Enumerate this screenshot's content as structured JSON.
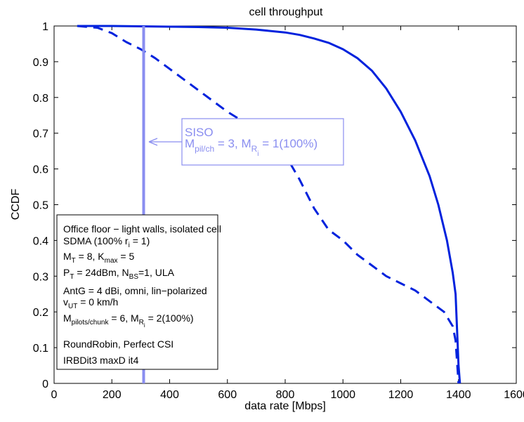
{
  "chart_data": {
    "type": "line",
    "title": "cell throughput",
    "xlabel": "data rate [Mbps]",
    "ylabel": "CCDF",
    "xlim": [
      0,
      1600
    ],
    "ylim": [
      0,
      1
    ],
    "xticks": [
      "0",
      "200",
      "400",
      "600",
      "800",
      "1000",
      "1200",
      "1400",
      "1600"
    ],
    "yticks": [
      "0",
      "0.1",
      "0.2",
      "0.3",
      "0.4",
      "0.5",
      "0.6",
      "0.7",
      "0.8",
      "0.9",
      "1"
    ],
    "grid": false,
    "series": [
      {
        "style": "solid",
        "color": "#0022dd",
        "x": [
          80,
          200,
          400,
          500,
          600,
          700,
          800,
          850,
          900,
          950,
          1000,
          1050,
          1100,
          1150,
          1200,
          1250,
          1300,
          1330,
          1360,
          1380,
          1390,
          1395,
          1400,
          1405
        ],
        "y": [
          1.0,
          1.0,
          0.998,
          0.997,
          0.995,
          0.99,
          0.982,
          0.975,
          0.965,
          0.953,
          0.935,
          0.91,
          0.875,
          0.825,
          0.76,
          0.68,
          0.58,
          0.5,
          0.4,
          0.31,
          0.25,
          0.15,
          0.05,
          0.0
        ]
      },
      {
        "style": "dashed",
        "color": "#0022dd",
        "x": [
          80,
          150,
          200,
          250,
          300,
          350,
          400,
          450,
          500,
          550,
          600,
          650,
          700,
          750,
          800,
          850,
          900,
          950,
          1000,
          1050,
          1100,
          1150,
          1200,
          1250,
          1300,
          1350,
          1380,
          1390,
          1395,
          1400
        ],
        "y": [
          1.0,
          0.995,
          0.98,
          0.955,
          0.935,
          0.91,
          0.88,
          0.85,
          0.82,
          0.79,
          0.76,
          0.735,
          0.71,
          0.68,
          0.64,
          0.57,
          0.49,
          0.43,
          0.4,
          0.36,
          0.33,
          0.3,
          0.28,
          0.26,
          0.23,
          0.2,
          0.16,
          0.12,
          0.06,
          0.0
        ]
      },
      {
        "style": "solid-vertical",
        "color": "#8a8ef0",
        "x": [
          310,
          310
        ],
        "y": [
          0,
          1
        ]
      }
    ],
    "annotation_siso": {
      "line1": "SISO",
      "line2_prefix": "M",
      "line2_sub": "pil/ch",
      "line2_mid": " = 3, M",
      "line2_sub2": "R",
      "line2_subsub": "i",
      "line2_suffix": " = 1(100%)",
      "arrow_target": [
        310,
        0.675
      ]
    },
    "info_box": {
      "line1": "Office floor − light walls, isolated cell",
      "line2_a": "SDMA (100% r",
      "line2_sub": "i",
      "line2_b": " = 1)",
      "line3_a": "M",
      "line3_sub1": "T",
      "line3_b": " = 8, K",
      "line3_sub2": "max",
      "line3_c": " = 5",
      "line4_a": "P",
      "line4_sub1": "T",
      "line4_b": " = 24dBm, N",
      "line4_sub2": "BS",
      "line4_c": "=1, ULA",
      "line5": "AntG = 4 dBi, omni, lin−polarized",
      "line6_a": "v",
      "line6_sub": "UT",
      "line6_b": " = 0 km/h",
      "line7_a": "M",
      "line7_sub1": "pilots/chunk",
      "line7_b": " = 6, M",
      "line7_sub2": "R",
      "line7_subsub": "i",
      "line7_c": " = 2(100%)",
      "line8": "RoundRobin, Perfect CSI",
      "line9": "IRBDit3 maxD it4"
    }
  }
}
